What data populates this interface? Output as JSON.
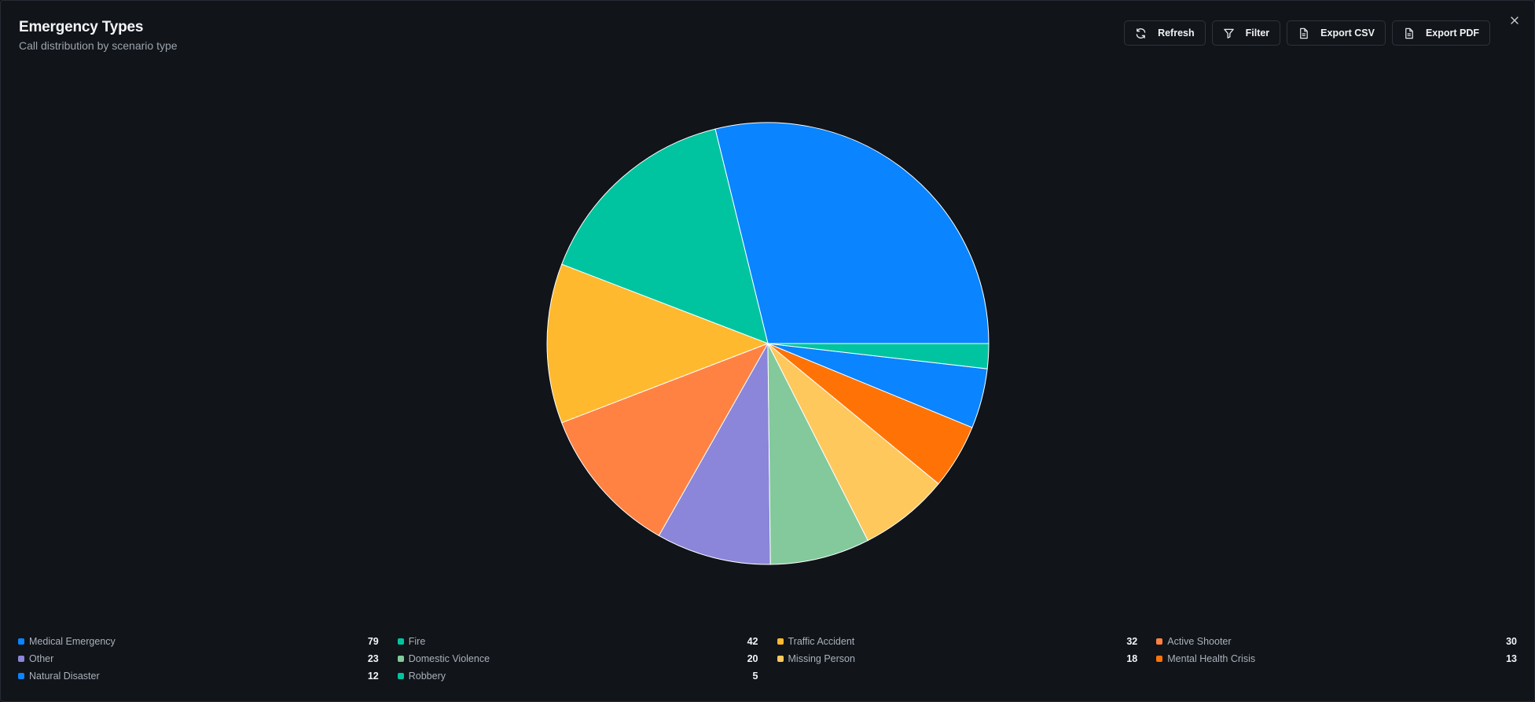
{
  "header": {
    "title": "Emergency Types",
    "subtitle": "Call distribution by scenario type"
  },
  "toolbar": {
    "refresh_label": "Refresh",
    "filter_label": "Filter",
    "export_csv_label": "Export CSV",
    "export_pdf_label": "Export PDF"
  },
  "icons": {
    "refresh": "refresh-icon",
    "filter": "filter-icon",
    "export_csv": "file-icon",
    "export_pdf": "file-icon",
    "close": "close-icon"
  },
  "colors": {
    "background": "#111419",
    "slice_border": "#ffffff"
  },
  "chart_data": {
    "type": "pie",
    "slices": [
      {
        "name": "Medical Emergency",
        "value": 79,
        "color": "#0a84ff"
      },
      {
        "name": "Fire",
        "value": 42,
        "color": "#00c4a0"
      },
      {
        "name": "Traffic Accident",
        "value": 32,
        "color": "#ffb92e"
      },
      {
        "name": "Active Shooter",
        "value": 30,
        "color": "#ff8243"
      },
      {
        "name": "Other",
        "value": 23,
        "color": "#8b86d9"
      },
      {
        "name": "Domestic Violence",
        "value": 20,
        "color": "#83c99b"
      },
      {
        "name": "Missing Person",
        "value": 18,
        "color": "#ffc85c"
      },
      {
        "name": "Mental Health Crisis",
        "value": 13,
        "color": "#ff7306"
      },
      {
        "name": "Natural Disaster",
        "value": 12,
        "color": "#0a84ff"
      },
      {
        "name": "Robbery",
        "value": 5,
        "color": "#00c4a0"
      }
    ],
    "start_direction": "3 o'clock",
    "direction": "counterclockwise",
    "legend_position": "bottom"
  }
}
